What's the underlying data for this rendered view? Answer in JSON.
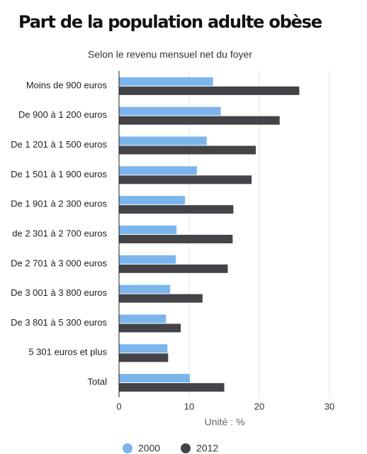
{
  "chart_data": {
    "type": "bar",
    "orientation": "horizontal",
    "title": "Part de la population adulte obèse",
    "subtitle": "Selon le revenu mensuel net du foyer",
    "categories": [
      "Moins de 900 euros",
      "De 900 à 1 200 euros",
      "De 1 201 à 1 500 euros",
      "De 1 501 à 1 900 euros",
      "De 1 901 à 2 300 euros",
      "de 2 301 à 2 700 euros",
      "De 2 701 à 3 000 euros",
      "De 3 001 à 3 800 euros",
      "De 3 801 à 5 300 euros",
      "5 301 euros et plus",
      "Total"
    ],
    "series": [
      {
        "name": "2000",
        "color": "#7cb5ec",
        "values": [
          13.4,
          14.5,
          12.5,
          11.1,
          9.4,
          8.2,
          8.1,
          7.3,
          6.7,
          6.9,
          10.1
        ]
      },
      {
        "name": "2012",
        "color": "#434348",
        "values": [
          25.7,
          22.9,
          19.5,
          18.9,
          16.3,
          16.2,
          15.5,
          11.9,
          8.8,
          7.0,
          15.0
        ]
      }
    ],
    "xlabel": "Unité : %",
    "xlim": [
      0,
      30
    ],
    "xticks": [
      0,
      10,
      20,
      30
    ],
    "grid": true,
    "legend": "bottom"
  }
}
